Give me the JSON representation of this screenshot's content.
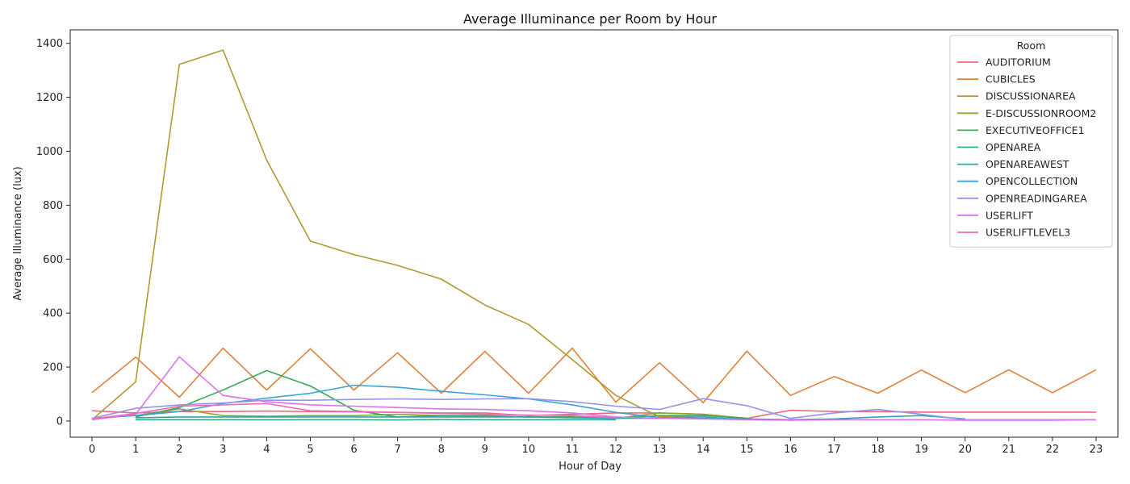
{
  "chart_data": {
    "type": "line",
    "title": "Average Illuminance per Room by Hour",
    "xlabel": "Hour of Day",
    "ylabel": "Average Illuminance (lux)",
    "x": [
      0,
      1,
      2,
      3,
      4,
      5,
      6,
      7,
      8,
      9,
      10,
      11,
      12,
      13,
      14,
      15,
      16,
      17,
      18,
      19,
      20,
      21,
      22,
      23
    ],
    "xlim": [
      -0.5,
      23.5
    ],
    "ylim": [
      -60,
      1450
    ],
    "yticks": [
      0,
      200,
      400,
      600,
      800,
      1000,
      1200,
      1400
    ],
    "grid": false,
    "legend": {
      "title": "Room",
      "placement": "top-right"
    },
    "series": [
      {
        "name": "AUDITORIUM",
        "color": "#f0677e",
        "values": [
          38,
          30,
          35,
          35,
          37,
          35,
          34,
          32,
          30,
          30,
          20,
          25,
          30,
          30,
          25,
          10,
          40,
          35,
          35,
          33,
          33,
          33,
          33,
          33
        ]
      },
      {
        "name": "CUBICLES",
        "color": "#e0813a",
        "values": [
          105,
          237,
          88,
          270,
          115,
          268,
          115,
          253,
          103,
          258,
          103,
          270,
          70,
          216,
          68,
          259,
          95,
          165,
          103,
          189,
          105,
          190,
          105,
          190
        ]
      },
      {
        "name": "DISCUSSIONAREA",
        "color": "#b09a30",
        "values": [
          5,
          145,
          1322,
          1375,
          967,
          667,
          617,
          577,
          526,
          430,
          358,
          228,
          95,
          15,
          20,
          null,
          null,
          null,
          null,
          null,
          null,
          null,
          null,
          null
        ]
      },
      {
        "name": "E-DISCUSSIONROOM2",
        "color": "#8aa833",
        "values": [
          null,
          20,
          45,
          20,
          18,
          20,
          20,
          25,
          20,
          18,
          15,
          15,
          10,
          30,
          25,
          10,
          null,
          null,
          null,
          null,
          null,
          null,
          null,
          null
        ]
      },
      {
        "name": "EXECUTIVEOFFICE1",
        "color": "#3aab59",
        "values": [
          null,
          15,
          50,
          115,
          187,
          130,
          40,
          15,
          20,
          20,
          15,
          15,
          10,
          20,
          20,
          10,
          null,
          null,
          null,
          null,
          null,
          null,
          null,
          null
        ]
      },
      {
        "name": "OPENAREA",
        "color": "#2eaa90",
        "values": [
          null,
          5,
          5,
          5,
          5,
          5,
          5,
          4,
          6,
          5,
          5,
          5,
          5,
          null,
          null,
          null,
          null,
          null,
          null,
          null,
          null,
          null,
          null,
          null
        ]
      },
      {
        "name": "OPENAREAWEST",
        "color": "#30a6a8",
        "values": [
          null,
          12,
          15,
          15,
          15,
          15,
          15,
          15,
          15,
          15,
          15,
          12,
          10,
          10,
          10,
          8,
          5,
          8,
          15,
          20,
          8,
          null,
          null,
          null
        ]
      },
      {
        "name": "OPENCOLLECTION",
        "color": "#3ba2d3",
        "values": [
          10,
          20,
          35,
          65,
          85,
          103,
          133,
          125,
          110,
          97,
          82,
          60,
          32,
          12,
          15,
          5,
          null,
          null,
          null,
          null,
          null,
          null,
          null,
          null
        ]
      },
      {
        "name": "OPENREADINGAREA",
        "color": "#9395ea",
        "values": [
          10,
          47,
          60,
          67,
          77,
          77,
          80,
          82,
          80,
          82,
          83,
          72,
          55,
          43,
          83,
          57,
          10,
          30,
          43,
          25,
          5,
          5,
          5,
          5
        ]
      },
      {
        "name": "USERLIFT",
        "color": "#d972ee",
        "values": [
          5,
          25,
          238,
          95,
          72,
          60,
          55,
          50,
          45,
          43,
          38,
          30,
          15,
          10,
          8,
          5,
          3,
          5,
          5,
          5,
          3,
          3,
          3,
          5
        ]
      },
      {
        "name": "USERLIFTLEVEL3",
        "color": "#ee6bbb",
        "values": [
          8,
          28,
          55,
          60,
          65,
          38,
          35,
          32,
          28,
          25,
          22,
          20,
          12,
          null,
          null,
          null,
          null,
          null,
          null,
          null,
          null,
          null,
          null,
          null
        ]
      }
    ]
  }
}
